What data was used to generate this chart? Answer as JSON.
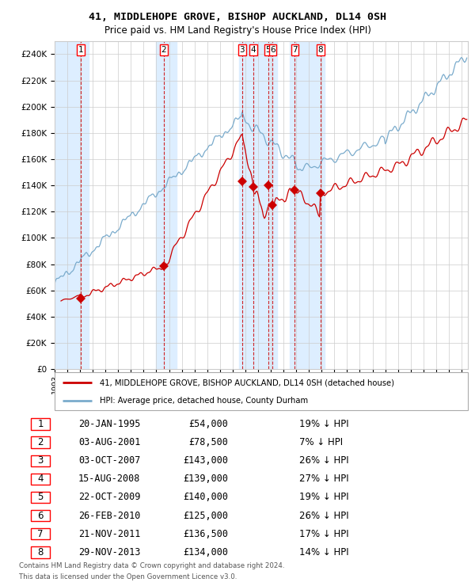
{
  "title": "41, MIDDLEHOPE GROVE, BISHOP AUCKLAND, DL14 0SH",
  "subtitle": "Price paid vs. HM Land Registry's House Price Index (HPI)",
  "legend_label_red": "41, MIDDLEHOPE GROVE, BISHOP AUCKLAND, DL14 0SH (detached house)",
  "legend_label_blue": "HPI: Average price, detached house, County Durham",
  "footer_line1": "Contains HM Land Registry data © Crown copyright and database right 2024.",
  "footer_line2": "This data is licensed under the Open Government Licence v3.0.",
  "transactions": [
    {
      "num": 1,
      "date": "20-JAN-1995",
      "price": 54000,
      "pct": "19%",
      "x": 1995.055
    },
    {
      "num": 2,
      "date": "03-AUG-2001",
      "price": 78500,
      "pct": "7%",
      "x": 2001.586
    },
    {
      "num": 3,
      "date": "03-OCT-2007",
      "price": 143000,
      "pct": "26%",
      "x": 2007.753
    },
    {
      "num": 4,
      "date": "15-AUG-2008",
      "price": 139000,
      "pct": "27%",
      "x": 2008.619
    },
    {
      "num": 5,
      "date": "22-OCT-2009",
      "price": 140000,
      "pct": "19%",
      "x": 2009.808
    },
    {
      "num": 6,
      "date": "26-FEB-2010",
      "price": 125000,
      "pct": "26%",
      "x": 2010.152
    },
    {
      "num": 7,
      "date": "21-NOV-2011",
      "price": 136500,
      "pct": "17%",
      "x": 2011.892
    },
    {
      "num": 8,
      "date": "29-NOV-2013",
      "price": 134000,
      "pct": "14%",
      "x": 2013.909
    }
  ],
  "background_shaded_regions": [
    [
      1993.0,
      1995.7
    ],
    [
      2001.0,
      2002.6
    ],
    [
      2007.5,
      2010.5
    ],
    [
      2011.5,
      2014.2
    ]
  ],
  "ylim": [
    0,
    250000
  ],
  "xlim_start": 1993.0,
  "xlim_end": 2025.5,
  "red_color": "#cc0000",
  "blue_color": "#7aabcc",
  "shade_color": "#ddeeff",
  "grid_color": "#cccccc"
}
